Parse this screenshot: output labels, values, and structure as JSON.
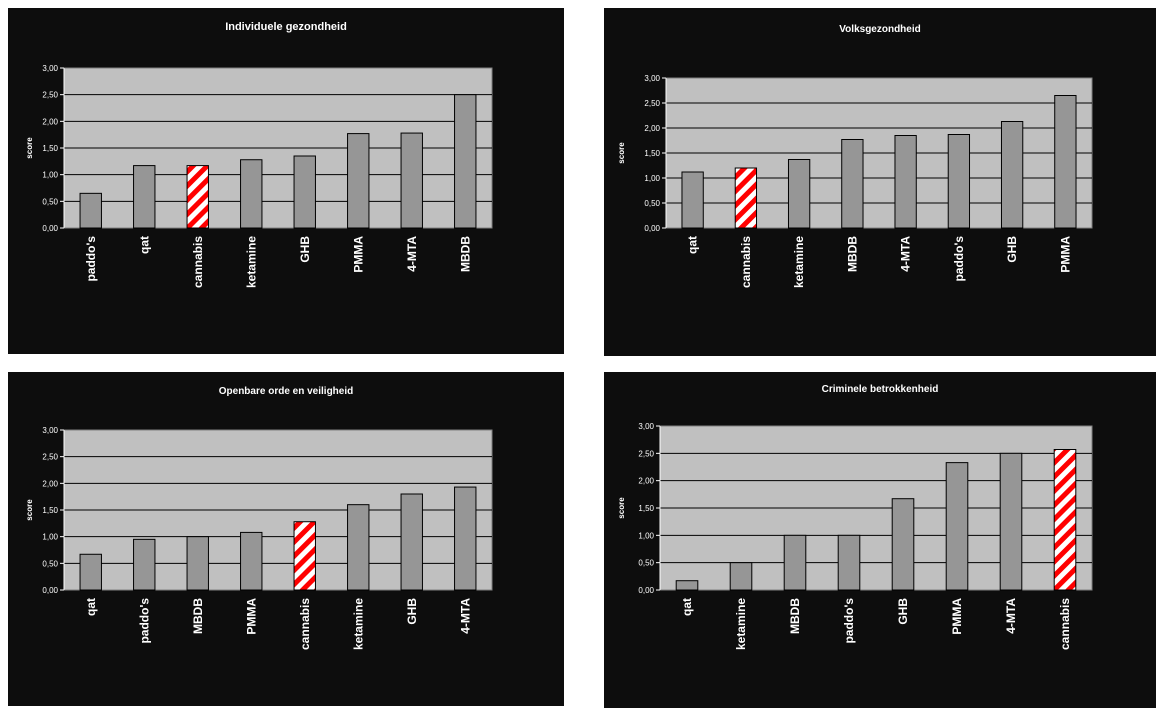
{
  "colors": {
    "panel_bg": "#0d0d0d",
    "plot_bg": "#c0c0c0",
    "bar": "#969696",
    "highlight_stripe_a": "#ff0000",
    "highlight_stripe_b": "#ffffff",
    "gridline": "#000000",
    "text": "#ffffff"
  },
  "chart_data": [
    {
      "type": "bar",
      "title": "Individuele gezondheid",
      "ylabel": "score",
      "ylim": [
        0,
        3
      ],
      "yticks": [
        "0,00",
        "0,50",
        "1,00",
        "1,50",
        "2,00",
        "2,50",
        "3,00"
      ],
      "grid": true,
      "categories": [
        "paddo's",
        "qat",
        "cannabis",
        "ketamine",
        "GHB",
        "PMMA",
        "4-MTA",
        "MBDB"
      ],
      "values": [
        0.65,
        1.17,
        1.17,
        1.28,
        1.35,
        1.77,
        1.78,
        2.5
      ],
      "highlight": "cannabis"
    },
    {
      "type": "bar",
      "title": "Volksgezondheid",
      "ylabel": "score",
      "ylim": [
        0,
        3
      ],
      "yticks": [
        "0,00",
        "0,50",
        "1,00",
        "1,50",
        "2,00",
        "2,50",
        "3,00"
      ],
      "grid": true,
      "categories": [
        "qat",
        "cannabis",
        "ketamine",
        "MBDB",
        "4-MTA",
        "paddo's",
        "GHB",
        "PMMA"
      ],
      "values": [
        1.12,
        1.2,
        1.37,
        1.77,
        1.85,
        1.87,
        2.13,
        2.65
      ],
      "highlight": "cannabis"
    },
    {
      "type": "bar",
      "title": "Openbare orde en veiligheid",
      "ylabel": "score",
      "ylim": [
        0,
        3
      ],
      "yticks": [
        "0,00",
        "0,50",
        "1,00",
        "1,50",
        "2,00",
        "2,50",
        "3,00"
      ],
      "grid": true,
      "categories": [
        "qat",
        "paddo's",
        "MBDB",
        "PMMA",
        "cannabis",
        "ketamine",
        "GHB",
        "4-MTA"
      ],
      "values": [
        0.67,
        0.95,
        1.0,
        1.08,
        1.28,
        1.6,
        1.8,
        1.93
      ],
      "highlight": "cannabis"
    },
    {
      "type": "bar",
      "title": "Criminele betrokkenheid",
      "ylabel": "score",
      "ylim": [
        0,
        3
      ],
      "yticks": [
        "0,00",
        "0,50",
        "1,00",
        "1,50",
        "2,00",
        "2,50",
        "3,00"
      ],
      "grid": true,
      "categories": [
        "qat",
        "ketamine",
        "MBDB",
        "paddo's",
        "GHB",
        "PMMA",
        "4-MTA",
        "cannabis"
      ],
      "values": [
        0.17,
        0.5,
        1.0,
        1.0,
        1.67,
        2.33,
        2.5,
        2.57
      ],
      "highlight": "cannabis"
    }
  ]
}
